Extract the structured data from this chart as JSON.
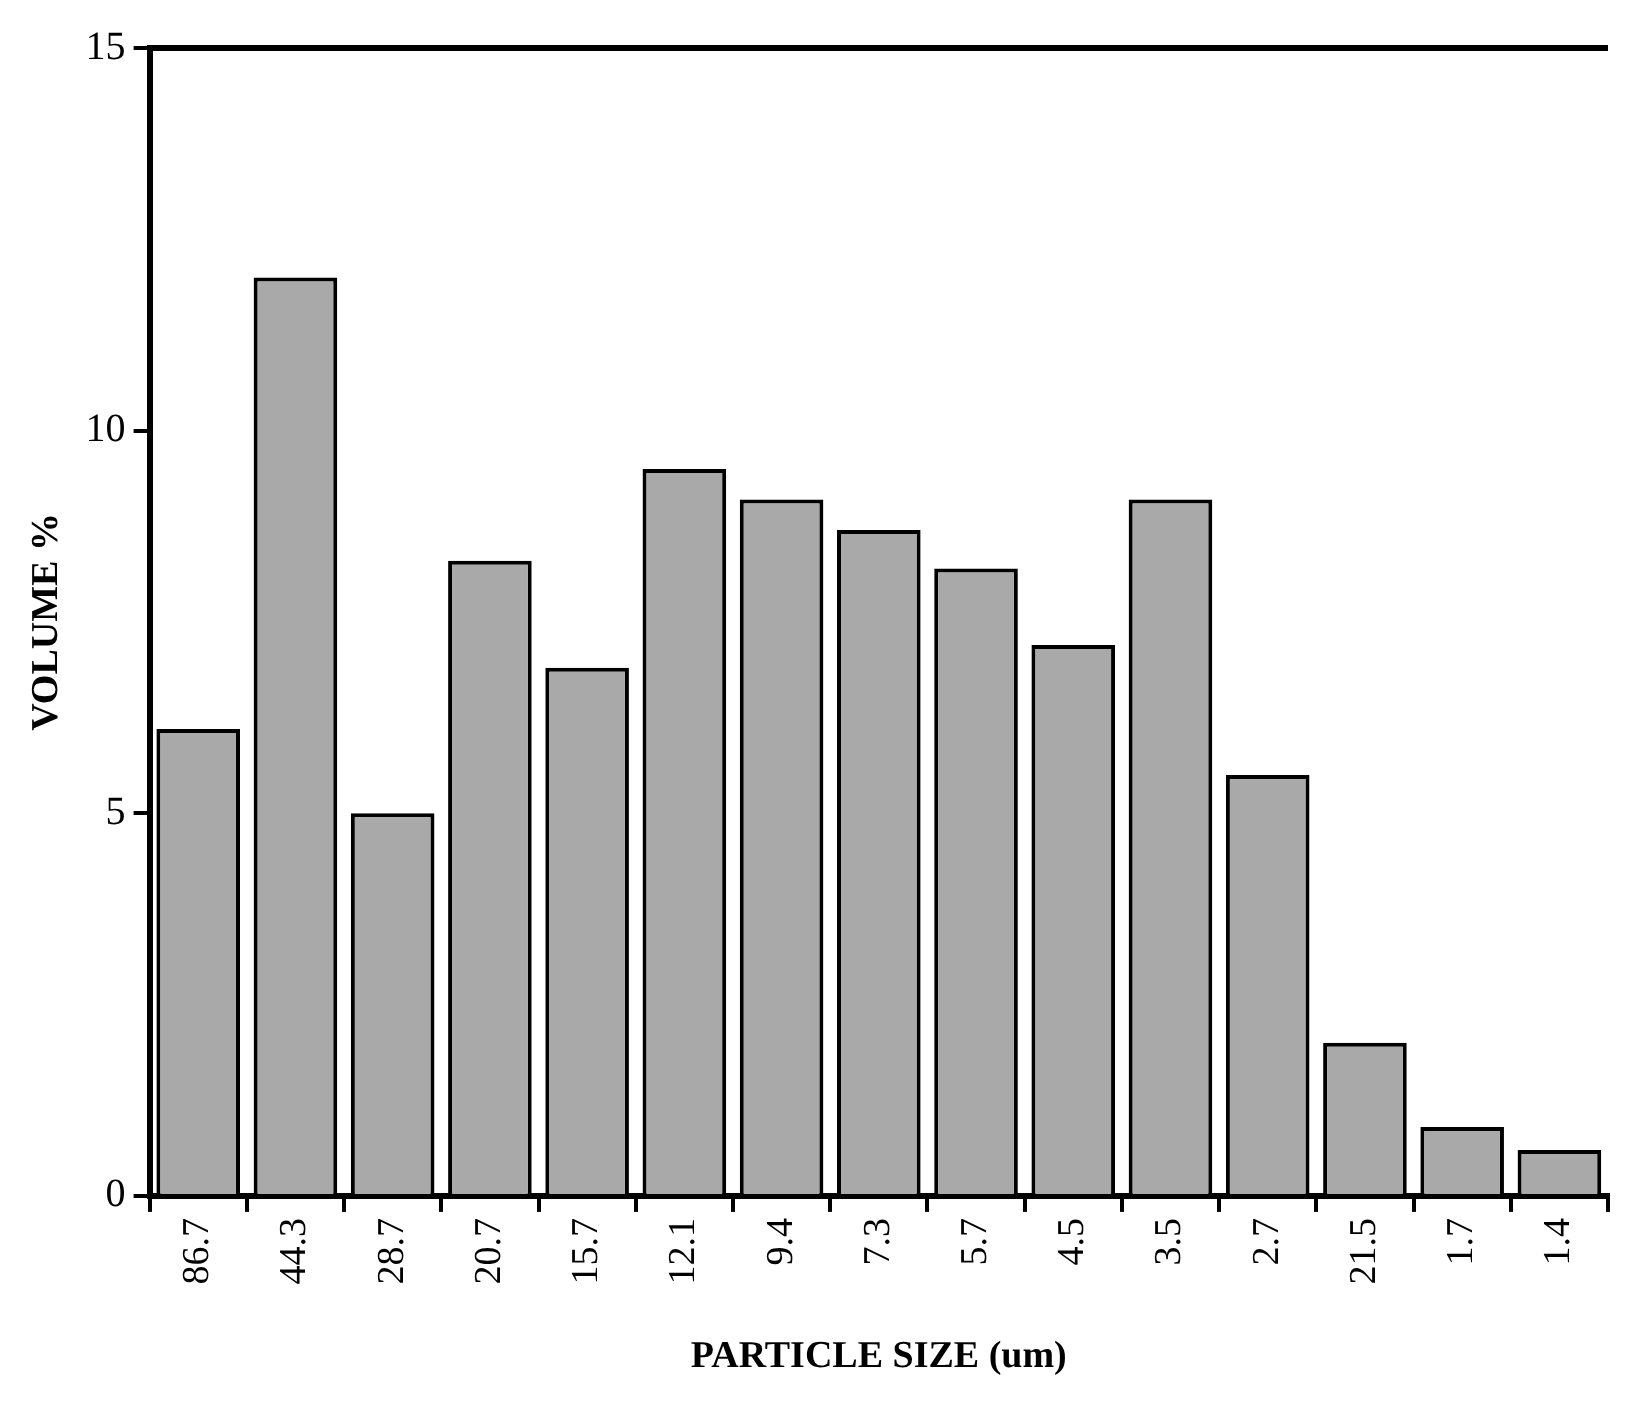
{
  "chart_data": {
    "type": "bar",
    "xlabel": "PARTICLE SIZE (um)",
    "ylabel": "VOLUME %",
    "categories": [
      "86.7",
      "44.3",
      "28.7",
      "20.7",
      "15.7",
      "12.1",
      "9.4",
      "7.3",
      "5.7",
      "4.5",
      "3.5",
      "2.7",
      "21.5",
      "1.7",
      "1.4"
    ],
    "values": [
      6.1,
      12.0,
      5.0,
      8.3,
      6.9,
      9.5,
      9.1,
      8.7,
      8.2,
      7.2,
      9.1,
      5.5,
      2.0,
      0.9,
      0.6
    ],
    "color": "#a9a9a9",
    "ylim": [
      0,
      15
    ],
    "yticks": [
      0,
      5,
      10,
      15
    ],
    "grid": false,
    "legend": false
  }
}
